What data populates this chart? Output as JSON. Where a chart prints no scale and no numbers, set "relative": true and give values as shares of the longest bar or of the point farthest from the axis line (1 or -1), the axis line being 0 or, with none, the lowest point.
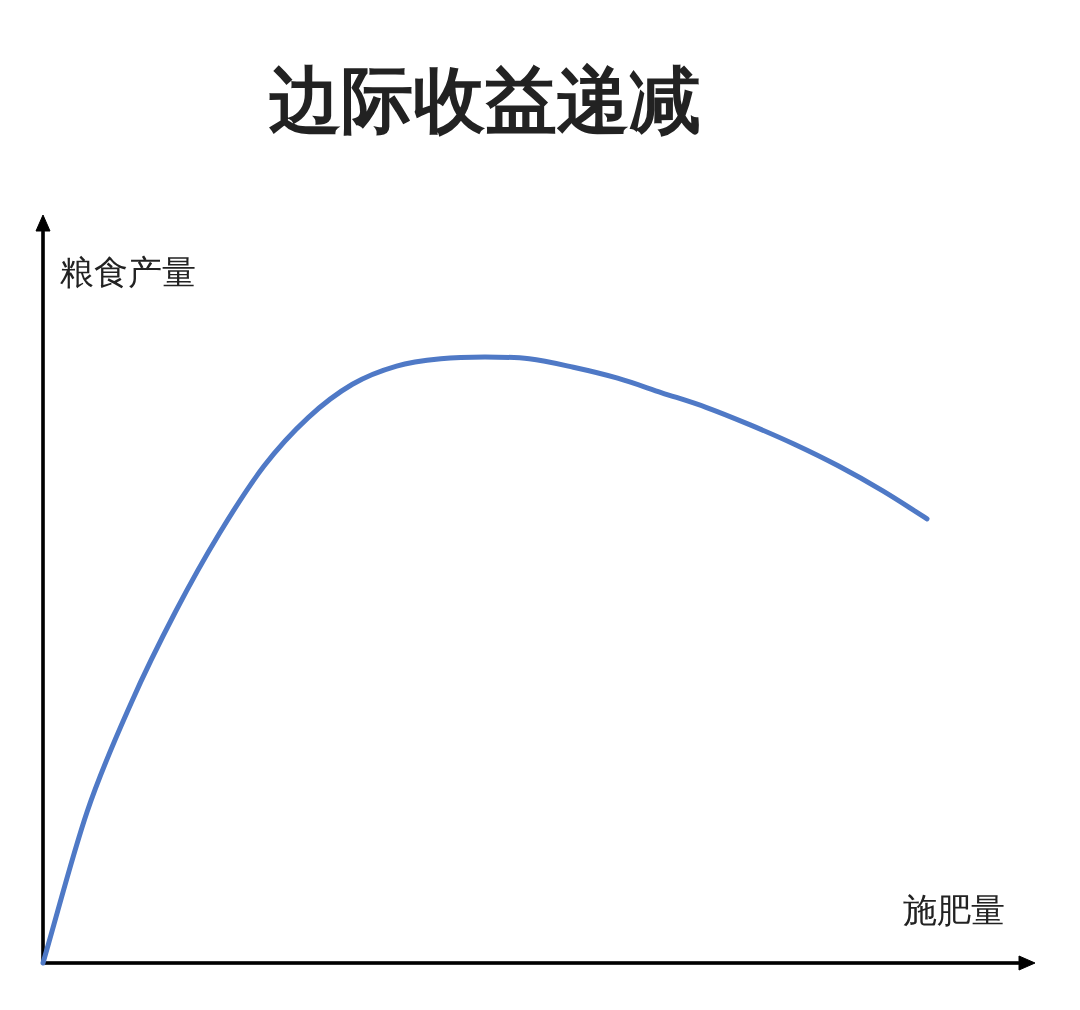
{
  "chart_data": {
    "type": "line",
    "title": "边际收益递减",
    "xlabel": "施肥量",
    "ylabel": "粮食产量",
    "relative": true,
    "categories": [
      null,
      null,
      null,
      null,
      null,
      null,
      null,
      null,
      null,
      null,
      null,
      null,
      null,
      null,
      null,
      null,
      null,
      null,
      null,
      null,
      null
    ],
    "series": [
      {
        "color": "#4f79c6",
        "values": [
          0,
          0.25,
          0.43,
          0.58,
          0.71,
          0.82,
          0.9,
          0.955,
          0.985,
          0.997,
          1,
          0.997,
          0.983,
          0.965,
          0.941,
          0.917,
          0.888,
          0.856,
          0.82,
          0.779,
          0.733
        ]
      }
    ]
  }
}
